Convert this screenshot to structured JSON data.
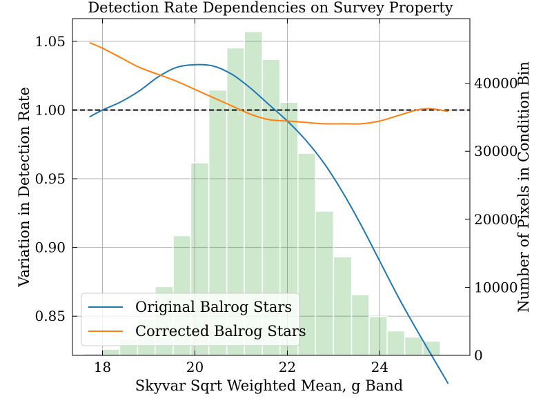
{
  "chart_data": {
    "type": "line",
    "title": "Detection Rate Dependencies on Survey Property",
    "xlabel": "Skyvar Sqrt Weighted Mean, g Band",
    "ylabel": "Variation in Detection Rate",
    "y2label": "Number of Pixels in Condition Bin",
    "xlim": [
      17.35,
      25.95
    ],
    "ylim": [
      0.8215,
      1.0665
    ],
    "y2lim": [
      0,
      49500
    ],
    "x_ticks": [
      18,
      20,
      22,
      24
    ],
    "y_ticks": [
      0.85,
      0.9,
      0.95,
      1.0,
      1.05
    ],
    "y_tick_labels": [
      "0.85",
      "0.90",
      "0.95",
      "1.00",
      "1.05"
    ],
    "y2_ticks": [
      0,
      10000,
      20000,
      30000,
      40000
    ],
    "grid": true,
    "reference_line": {
      "y": 1.0,
      "style": "dashed",
      "color": "#000000"
    },
    "legend_location": "lower left",
    "histogram": {
      "color": "#2ca02c",
      "bins": [
        {
          "x0": 17.6,
          "x1": 17.98,
          "count": 250
        },
        {
          "x0": 17.98,
          "x1": 18.37,
          "count": 900
        },
        {
          "x0": 18.37,
          "x1": 18.76,
          "count": 2400
        },
        {
          "x0": 18.76,
          "x1": 19.14,
          "count": 5300
        },
        {
          "x0": 19.14,
          "x1": 19.53,
          "count": 10100
        },
        {
          "x0": 19.53,
          "x1": 19.91,
          "count": 17600
        },
        {
          "x0": 19.91,
          "x1": 20.3,
          "count": 28300
        },
        {
          "x0": 20.3,
          "x1": 20.69,
          "count": 39000
        },
        {
          "x0": 20.69,
          "x1": 21.07,
          "count": 45200
        },
        {
          "x0": 21.07,
          "x1": 21.46,
          "count": 47600
        },
        {
          "x0": 21.46,
          "x1": 21.84,
          "count": 43500
        },
        {
          "x0": 21.84,
          "x1": 22.23,
          "count": 37200
        },
        {
          "x0": 22.23,
          "x1": 22.61,
          "count": 29700
        },
        {
          "x0": 22.61,
          "x1": 23.0,
          "count": 21200
        },
        {
          "x0": 23.0,
          "x1": 23.39,
          "count": 14500
        },
        {
          "x0": 23.39,
          "x1": 23.77,
          "count": 8900
        },
        {
          "x0": 23.77,
          "x1": 24.16,
          "count": 5700
        },
        {
          "x0": 24.16,
          "x1": 24.54,
          "count": 3600
        },
        {
          "x0": 24.54,
          "x1": 24.93,
          "count": 2700
        },
        {
          "x0": 24.93,
          "x1": 25.31,
          "count": 2100
        }
      ]
    },
    "series": [
      {
        "name": "Original Balrog Stars",
        "color": "#1f77b4",
        "x": [
          17.72,
          18.0,
          18.4,
          18.8,
          19.2,
          19.6,
          20.0,
          20.4,
          20.8,
          21.2,
          21.6,
          22.0,
          22.4,
          22.8,
          23.2,
          23.6,
          24.0,
          24.4,
          24.8,
          25.2,
          25.48
        ],
        "y": [
          0.995,
          1.0,
          1.006,
          1.014,
          1.024,
          1.031,
          1.033,
          1.032,
          1.026,
          1.016,
          1.004,
          0.992,
          0.978,
          0.961,
          0.94,
          0.916,
          0.89,
          0.864,
          0.84,
          0.817,
          0.801
        ]
      },
      {
        "name": "Corrected Balrog Stars",
        "color": "#ff7f0e",
        "x": [
          17.72,
          18.0,
          18.4,
          18.8,
          19.2,
          19.6,
          20.0,
          20.4,
          20.8,
          21.2,
          21.6,
          22.0,
          22.4,
          22.8,
          23.2,
          23.6,
          24.0,
          24.4,
          24.8,
          25.1,
          25.48
        ],
        "y": [
          1.049,
          1.045,
          1.038,
          1.031,
          1.026,
          1.021,
          1.015,
          1.009,
          1.003,
          0.997,
          0.993,
          0.992,
          0.991,
          0.99,
          0.99,
          0.99,
          0.992,
          0.996,
          1.0,
          1.001,
          0.999
        ]
      }
    ]
  }
}
